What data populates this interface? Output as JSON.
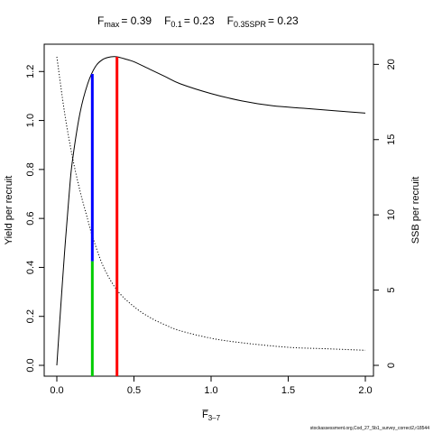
{
  "chart_data": {
    "type": "line",
    "title": {
      "fmax": {
        "symbol": "F",
        "sub": "max",
        "value": "= 0.39"
      },
      "f01": {
        "symbol": "F",
        "sub": "0.1",
        "value": "= 0.23"
      },
      "fspr": {
        "symbol": "F",
        "sub": "0.35SPR",
        "value": "= 0.23"
      }
    },
    "xlabel": {
      "main": "F̅",
      "sub": "3–7"
    },
    "ylabel_left": "Yield per recruit",
    "ylabel_right": "SSB per recruit",
    "footer": "stockassessment.org,Cod_27_5b1_survey_correct2,r18544",
    "xlim": [
      0,
      2
    ],
    "ylim_left": [
      0,
      1.26
    ],
    "ylim_right": [
      0,
      20.5
    ],
    "x_ticks": [
      "0.0",
      "0.5",
      "1.0",
      "1.5",
      "2.0"
    ],
    "y_left_ticks": [
      "0.0",
      "0.2",
      "0.4",
      "0.6",
      "0.8",
      "1.0",
      "1.2"
    ],
    "y_right_ticks": [
      "0",
      "5",
      "10",
      "15",
      "20"
    ],
    "series": [
      {
        "axis": "left",
        "style": "solid",
        "color": "#000000",
        "x": [
          0.0,
          0.02,
          0.05,
          0.08,
          0.1,
          0.15,
          0.2,
          0.25,
          0.3,
          0.35,
          0.39,
          0.45,
          0.5,
          0.6,
          0.7,
          0.8,
          1.0,
          1.2,
          1.4,
          1.6,
          1.8,
          2.0
        ],
        "y": [
          0.0,
          0.19,
          0.46,
          0.7,
          0.83,
          1.03,
          1.15,
          1.22,
          1.25,
          1.26,
          1.26,
          1.25,
          1.24,
          1.21,
          1.18,
          1.15,
          1.11,
          1.08,
          1.06,
          1.05,
          1.04,
          1.03
        ]
      },
      {
        "axis": "right",
        "style": "dotted",
        "color": "#000000",
        "x": [
          0.0,
          0.05,
          0.1,
          0.15,
          0.2,
          0.23,
          0.3,
          0.39,
          0.5,
          0.6,
          0.7,
          0.8,
          1.0,
          1.2,
          1.5,
          1.75,
          2.0
        ],
        "y": [
          20.5,
          16.8,
          13.9,
          11.6,
          9.7,
          8.6,
          6.6,
          5.0,
          3.9,
          3.2,
          2.7,
          2.3,
          1.8,
          1.5,
          1.2,
          1.1,
          1.0
        ]
      }
    ],
    "reference_lines": [
      {
        "x": 0.39,
        "y_from": 0,
        "y_to": 1.26,
        "color": "#ff0000"
      },
      {
        "x": 0.23,
        "y_from": 0.425,
        "y_to": 1.19,
        "color": "#0000ff"
      },
      {
        "x": 0.23,
        "y_from": 0,
        "y_to": 0.425,
        "color": "#00cc00"
      }
    ]
  }
}
